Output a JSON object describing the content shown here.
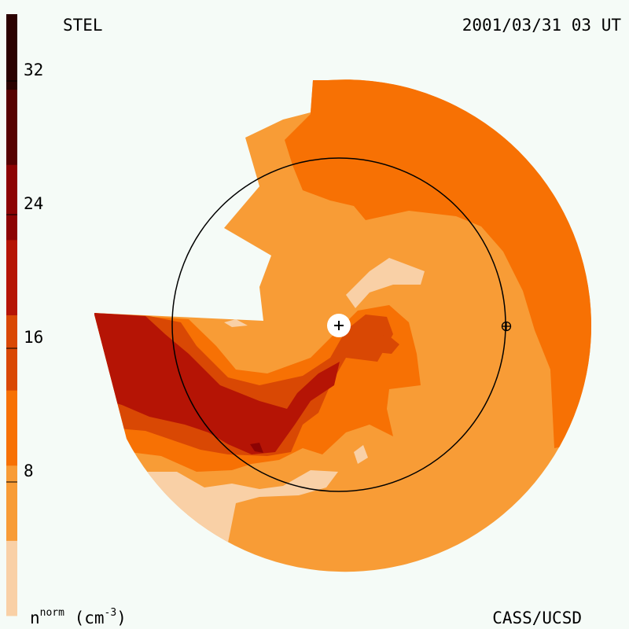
{
  "header": {
    "instrument": "STEL",
    "timestamp": "2001/03/31 03 UT"
  },
  "footer": {
    "credit": "CASS/UCSD",
    "unit_base": "n",
    "unit_sup": "norm",
    "unit_rest": " (cm",
    "unit_exp": "-3",
    "unit_close": ")"
  },
  "colorbar": {
    "min": 0,
    "max": 36,
    "ticks": [
      "8",
      "16",
      "24",
      "32"
    ],
    "tick_values": [
      8,
      16,
      24,
      32
    ],
    "colors": [
      "#f9d0a6",
      "#f89c36",
      "#f77104",
      "#d94804",
      "#b51405",
      "#8c0303",
      "#560101",
      "#2b0101"
    ]
  },
  "colors": {
    "level1": "#f9d0a6",
    "level2": "#f89c36",
    "level3": "#f77104",
    "level4": "#d94804",
    "level5": "#b51405",
    "level6": "#8c0303"
  },
  "markers": {
    "sun_symbol": "+",
    "earth_symbol": "⊕"
  }
}
